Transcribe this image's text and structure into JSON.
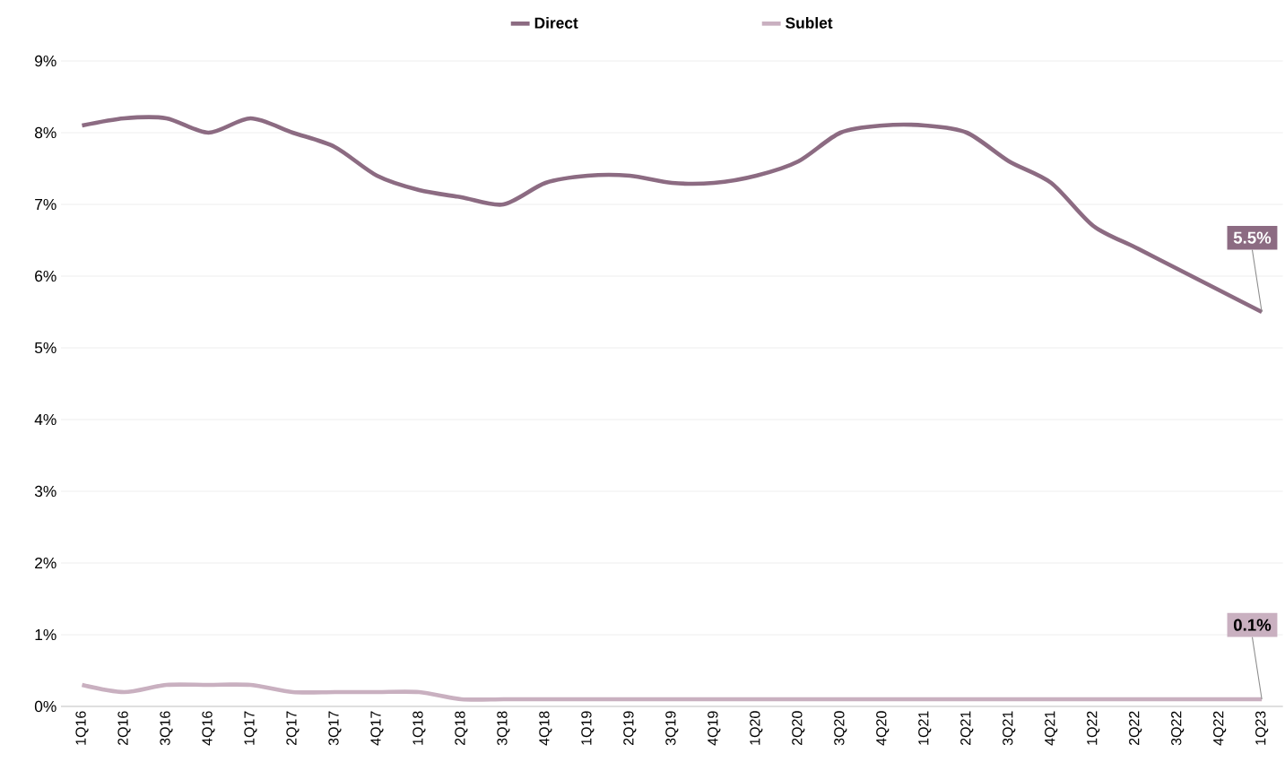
{
  "chart_data": {
    "type": "line",
    "categories": [
      "1Q16",
      "2Q16",
      "3Q16",
      "4Q16",
      "1Q17",
      "2Q17",
      "3Q17",
      "4Q17",
      "1Q18",
      "2Q18",
      "3Q18",
      "4Q18",
      "1Q19",
      "2Q19",
      "3Q19",
      "4Q19",
      "1Q20",
      "2Q20",
      "3Q20",
      "4Q20",
      "1Q21",
      "2Q21",
      "3Q21",
      "4Q21",
      "1Q22",
      "2Q22",
      "3Q22",
      "4Q22",
      "1Q23"
    ],
    "series": [
      {
        "name": "Direct",
        "color": "#8c6b82",
        "values": [
          8.1,
          8.2,
          8.2,
          8.0,
          8.2,
          8.0,
          7.8,
          7.4,
          7.2,
          7.1,
          7.0,
          7.3,
          7.4,
          7.4,
          7.3,
          7.3,
          7.4,
          7.6,
          8.0,
          8.1,
          8.1,
          8.0,
          7.6,
          7.3,
          6.7,
          6.4,
          6.1,
          5.8,
          5.5
        ]
      },
      {
        "name": "Sublet",
        "color": "#c9b0c0",
        "values": [
          0.3,
          0.2,
          0.3,
          0.3,
          0.3,
          0.2,
          0.2,
          0.2,
          0.2,
          0.1,
          0.1,
          0.1,
          0.1,
          0.1,
          0.1,
          0.1,
          0.1,
          0.1,
          0.1,
          0.1,
          0.1,
          0.1,
          0.1,
          0.1,
          0.1,
          0.1,
          0.1,
          0.1,
          0.1
        ]
      }
    ],
    "ylim": [
      0,
      9
    ],
    "yticks": [
      {
        "value": 0,
        "label": "0%"
      },
      {
        "value": 1,
        "label": "1%"
      },
      {
        "value": 2,
        "label": "2%"
      },
      {
        "value": 3,
        "label": "3%"
      },
      {
        "value": 4,
        "label": "4%"
      },
      {
        "value": 5,
        "label": "5%"
      },
      {
        "value": 6,
        "label": "6%"
      },
      {
        "value": 7,
        "label": "7%"
      },
      {
        "value": 8,
        "label": "8%"
      },
      {
        "value": 9,
        "label": "9%"
      }
    ],
    "annotations": [
      {
        "text": "5.5%",
        "x": "1Q23",
        "y": 5.5
      },
      {
        "text": "0.1%",
        "x": "1Q23",
        "y": 0.1
      }
    ],
    "grid": "y",
    "legend": "top",
    "marker": "none",
    "line_style": "solid"
  }
}
